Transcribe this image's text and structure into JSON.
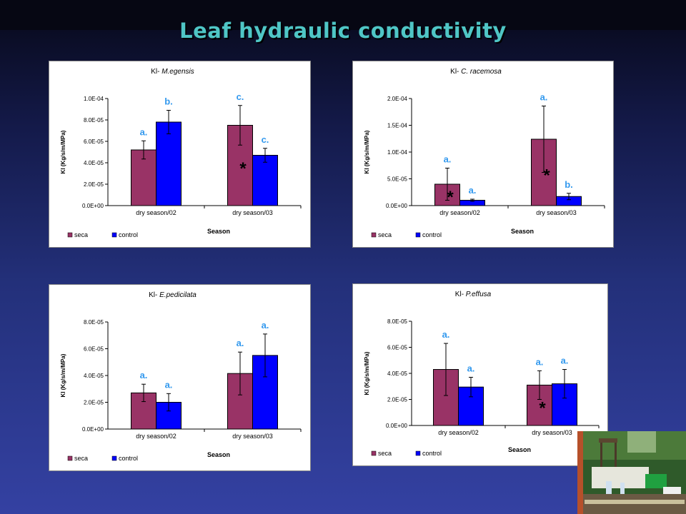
{
  "slide": {
    "title": "Leaf hydraulic conductivity"
  },
  "chart_data": [
    {
      "type": "bar",
      "title_prefix": "Kl- ",
      "title_species": "M.egensis",
      "xlabel": "Season",
      "ylabel": "Kl (Kg/s/m/MPa)",
      "categories": [
        "dry season/02",
        "dry season/03"
      ],
      "ylim": [
        0,
        0.0001
      ],
      "yticks": [
        "0.0E+00",
        "2.0E-05",
        "4.0E-05",
        "6.0E-05",
        "8.0E-05",
        "1.0E-04"
      ],
      "series": [
        {
          "name": "seca",
          "color": "#993366",
          "values": [
            5.2e-05,
            7.5e-05
          ],
          "errors": [
            8.5e-06,
            1.85e-05
          ],
          "letters": [
            "a.",
            "c."
          ]
        },
        {
          "name": "control",
          "color": "#0000ff",
          "values": [
            7.8e-05,
            4.7e-05
          ],
          "errors": [
            1.1e-05,
            6.5e-06
          ],
          "letters": [
            "b.",
            "c."
          ]
        }
      ],
      "significance": [
        {
          "category": 1,
          "mark": "*"
        }
      ],
      "legend": "bottom-left"
    },
    {
      "type": "bar",
      "title_prefix": "Kl- ",
      "title_species": "C. racemosa",
      "xlabel": "Season",
      "ylabel": "Kl (Kg/s/m/MPa)",
      "categories": [
        "dry season/02",
        "dry season/03"
      ],
      "ylim": [
        0,
        0.0002
      ],
      "yticks": [
        "0.0E+00",
        "5.0E-05",
        "1.0E-04",
        "1.5E-04",
        "2.0E-04"
      ],
      "series": [
        {
          "name": "seca",
          "color": "#993366",
          "values": [
            4e-05,
            0.000124
          ],
          "errors": [
            3e-05,
            6.2e-05
          ],
          "letters": [
            "a.",
            "a."
          ]
        },
        {
          "name": "control",
          "color": "#0000ff",
          "values": [
            1e-05,
            1.7e-05
          ],
          "errors": [
            2e-06,
            6e-06
          ],
          "letters": [
            "a.",
            "b."
          ]
        }
      ],
      "significance": [
        {
          "category": 0,
          "mark": "*"
        },
        {
          "category": 1,
          "mark": "*"
        }
      ],
      "legend": "bottom-left"
    },
    {
      "type": "bar",
      "title_prefix": "Kl- ",
      "title_species": "E.pedicilata",
      "xlabel": "Season",
      "ylabel": "Kl (Kg/s/m/MPa)",
      "categories": [
        "dry season/02",
        "dry season/03"
      ],
      "ylim": [
        0,
        8e-05
      ],
      "yticks": [
        "0.0E+00",
        "2.0E-05",
        "4.0E-05",
        "6.0E-05",
        "8.0E-05"
      ],
      "series": [
        {
          "name": "seca",
          "color": "#993366",
          "values": [
            2.7e-05,
            4.15e-05
          ],
          "errors": [
            6.5e-06,
            1.6e-05
          ],
          "letters": [
            "a.",
            "a."
          ]
        },
        {
          "name": "control",
          "color": "#0000ff",
          "values": [
            2e-05,
            5.5e-05
          ],
          "errors": [
            6.5e-06,
            1.6e-05
          ],
          "letters": [
            "a.",
            "a."
          ]
        }
      ],
      "significance": [],
      "legend": "bottom-left"
    },
    {
      "type": "bar",
      "title_prefix": "Kl- ",
      "title_species": "P.effusa",
      "xlabel": "Season",
      "ylabel": "Kl (Kg/s/m/MPa)",
      "categories": [
        "dry season/02",
        "dry season/03"
      ],
      "ylim": [
        0,
        8e-05
      ],
      "yticks": [
        "0.0E+00",
        "2.0E-05",
        "4.0E-05",
        "6.0E-05",
        "8.0E-05"
      ],
      "series": [
        {
          "name": "seca",
          "color": "#993366",
          "values": [
            4.3e-05,
            3.1e-05
          ],
          "errors": [
            2e-05,
            1.1e-05
          ],
          "letters": [
            "a.",
            "a."
          ]
        },
        {
          "name": "control",
          "color": "#0000ff",
          "values": [
            2.95e-05,
            3.2e-05
          ],
          "errors": [
            7.5e-06,
            1.1e-05
          ],
          "letters": [
            "a.",
            "a."
          ]
        }
      ],
      "significance": [
        {
          "category": 1,
          "mark": "*"
        }
      ],
      "legend": "bottom-left"
    }
  ]
}
